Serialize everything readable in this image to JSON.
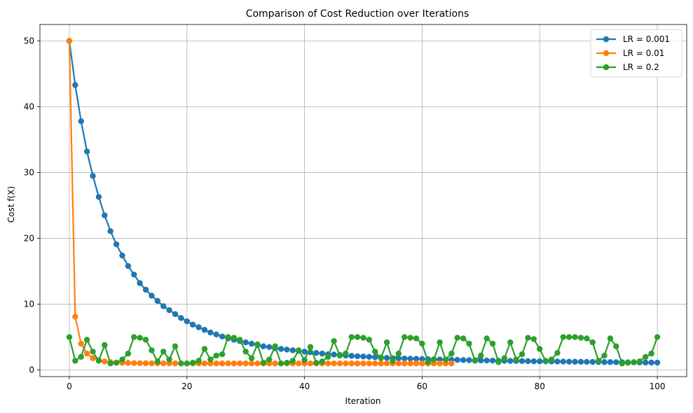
{
  "chart_data": {
    "type": "line",
    "title": "Comparison of Cost Reduction over Iterations",
    "xlabel": "Iteration",
    "ylabel": "Cost f(X)",
    "xlim": [
      -5,
      105
    ],
    "ylim": [
      -1,
      52.5
    ],
    "xticks": [
      0,
      20,
      40,
      60,
      80,
      100
    ],
    "yticks": [
      0,
      10,
      20,
      30,
      40,
      50
    ],
    "grid": true,
    "legend_position": "top-right",
    "series": [
      {
        "name": "LR = 0.001",
        "color": "#1f77b4",
        "x_start": 0,
        "values": [
          50.0,
          43.3,
          37.8,
          33.2,
          29.5,
          26.3,
          23.5,
          21.1,
          19.1,
          17.4,
          15.8,
          14.5,
          13.2,
          12.2,
          11.3,
          10.5,
          9.7,
          9.1,
          8.5,
          7.9,
          7.4,
          6.9,
          6.5,
          6.1,
          5.7,
          5.4,
          5.1,
          4.8,
          4.6,
          4.4,
          4.2,
          4.0,
          3.8,
          3.6,
          3.5,
          3.3,
          3.2,
          3.1,
          3.0,
          2.9,
          2.8,
          2.7,
          2.6,
          2.5,
          2.4,
          2.35,
          2.3,
          2.2,
          2.15,
          2.1,
          2.05,
          2.0,
          1.95,
          1.9,
          1.85,
          1.8,
          1.78,
          1.75,
          1.72,
          1.7,
          1.67,
          1.65,
          1.62,
          1.6,
          1.58,
          1.56,
          1.54,
          1.52,
          1.5,
          1.48,
          1.46,
          1.44,
          1.43,
          1.41,
          1.4,
          1.38,
          1.37,
          1.36,
          1.34,
          1.33,
          1.32,
          1.31,
          1.3,
          1.29,
          1.28,
          1.27,
          1.26,
          1.25,
          1.24,
          1.23,
          1.22,
          1.21,
          1.2,
          1.19,
          1.18,
          1.17,
          1.16,
          1.15,
          1.14,
          1.13,
          1.12
        ]
      },
      {
        "name": "LR = 0.01",
        "color": "#ff7f0e",
        "x_start": 0,
        "values": [
          50.0,
          8.1,
          4.0,
          2.5,
          1.8,
          1.5,
          1.3,
          1.2,
          1.15,
          1.1,
          1.08,
          1.05,
          1.04,
          1.03,
          1.02,
          1.02,
          1.01,
          1.01,
          1.01,
          1.0,
          1.0,
          1.0,
          1.0,
          1.0,
          1.0,
          1.0,
          1.0,
          1.0,
          1.0,
          1.0,
          1.0,
          1.0,
          1.0,
          1.0,
          1.0,
          1.0,
          1.0,
          1.0,
          1.0,
          1.0,
          1.0,
          1.0,
          1.0,
          1.0,
          1.0,
          1.0,
          1.0,
          1.0,
          1.0,
          1.0,
          1.0,
          1.0,
          1.0,
          1.0,
          1.0,
          1.0,
          1.0,
          1.0,
          1.0,
          1.0,
          1.0,
          1.0,
          1.0,
          1.0,
          1.0,
          1.0
        ]
      },
      {
        "name": "LR = 0.2",
        "color": "#2ca02c",
        "x_start": 0,
        "values": [
          5.0,
          1.4,
          2.0,
          4.6,
          2.8,
          1.4,
          3.8,
          1.0,
          1.1,
          1.6,
          2.5,
          5.0,
          4.9,
          4.6,
          3.0,
          1.3,
          2.8,
          1.6,
          3.6,
          1.0,
          1.0,
          1.1,
          1.4,
          3.2,
          1.6,
          2.2,
          2.4,
          5.0,
          4.9,
          4.6,
          2.8,
          1.8,
          3.9,
          1.1,
          1.6,
          3.6,
          1.0,
          1.1,
          1.4,
          3.0,
          1.5,
          3.5,
          1.1,
          1.3,
          2.0,
          4.4,
          2.2,
          2.5,
          5.0,
          5.0,
          4.9,
          4.6,
          2.8,
          1.8,
          4.2,
          1.4,
          2.5,
          5.0,
          4.9,
          4.8,
          4.0,
          1.2,
          1.6,
          4.2,
          1.6,
          2.5,
          4.9,
          4.8,
          4.0,
          1.4,
          2.2,
          4.8,
          4.0,
          1.2,
          1.8,
          4.2,
          1.6,
          2.4,
          4.9,
          4.7,
          3.2,
          1.4,
          1.6,
          2.6,
          5.0,
          5.0,
          5.0,
          4.9,
          4.8,
          4.2,
          1.4,
          2.2,
          4.8,
          3.6,
          1.0,
          1.1,
          1.2,
          1.3,
          2.0,
          2.5,
          5.0
        ]
      }
    ]
  }
}
